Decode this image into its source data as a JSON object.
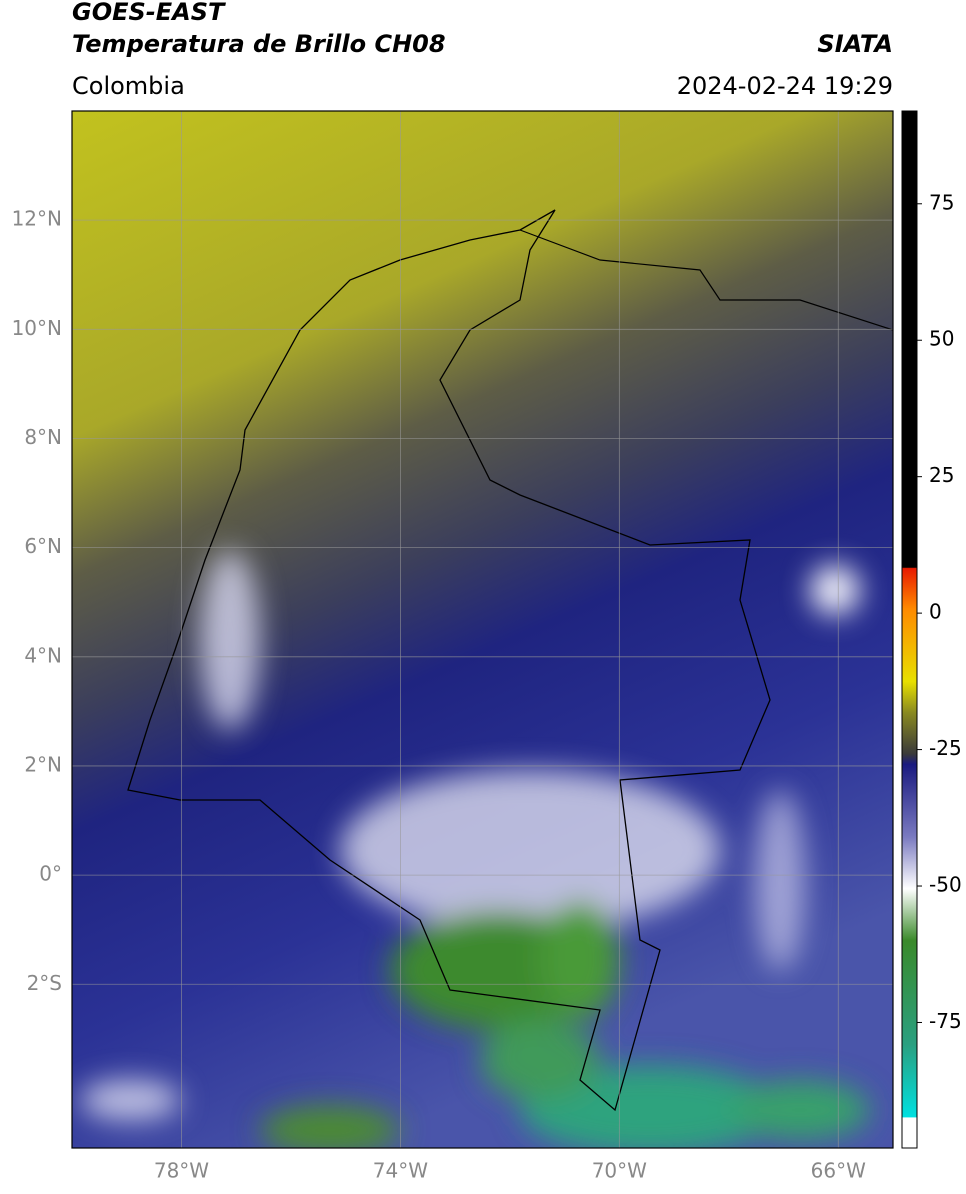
{
  "header": {
    "title": "GOES-EAST",
    "subtitle": "Temperatura de Brillo CH08",
    "source": "SIATA",
    "region": "Colombia",
    "datetime": "2024-02-24 19:29"
  },
  "map": {
    "xlim": [
      -80,
      -65
    ],
    "ylim": [
      -5,
      14
    ],
    "grid": true,
    "xticks": [
      {
        "value": -78,
        "label": "78°W"
      },
      {
        "value": -74,
        "label": "74°W"
      },
      {
        "value": -70,
        "label": "70°W"
      },
      {
        "value": -66,
        "label": "66°W"
      }
    ],
    "yticks": [
      {
        "value": 12,
        "label": "12°N"
      },
      {
        "value": 10,
        "label": "10°N"
      },
      {
        "value": 8,
        "label": "8°N"
      },
      {
        "value": 6,
        "label": "6°N"
      },
      {
        "value": 4,
        "label": "4°N"
      },
      {
        "value": 2,
        "label": "2°N"
      },
      {
        "value": 0,
        "label": "0°"
      },
      {
        "value": -2,
        "label": "2°S"
      }
    ]
  },
  "colorbar": {
    "lim": [
      -98,
      92
    ],
    "ticks": [
      75,
      50,
      25,
      0,
      -25,
      -50,
      -75
    ]
  }
}
